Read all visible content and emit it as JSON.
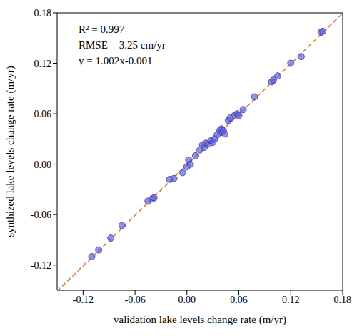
{
  "chart_data": {
    "type": "scatter",
    "xlabel": "validation lake levels change rate (m/yr)",
    "ylabel": "synthized lake levels change rate (m/yr)",
    "annotations": [
      "R² = 0.997",
      "RMSE = 3.25 cm/yr",
      "y = 1.002x-0.001"
    ],
    "xlim": [
      -0.15,
      0.18
    ],
    "ylim": [
      -0.15,
      0.18
    ],
    "xticks": [
      -0.12,
      -0.06,
      {
        "value": 0,
        "label": "0.00"
      },
      0.06,
      0.12,
      0.18
    ],
    "yticks": [
      -0.12,
      -0.06,
      {
        "value": 0,
        "label": "0.00"
      },
      0.06,
      0.12,
      0.18
    ],
    "grid": false,
    "color": "#6262dc",
    "marker": "circle",
    "x": [
      -0.11,
      -0.102,
      -0.088,
      -0.075,
      -0.045,
      -0.04,
      -0.038,
      -0.02,
      -0.015,
      -0.005,
      0,
      0.002,
      0.004,
      0.01,
      0.015,
      0.018,
      0.02,
      0.022,
      0.025,
      0.028,
      0.03,
      0.032,
      0.035,
      0.038,
      0.04,
      0.04,
      0.042,
      0.044,
      0.048,
      0.05,
      0.055,
      0.058,
      0.06,
      0.065,
      0.078,
      0.098,
      0.1,
      0.105,
      0.12,
      0.132,
      0.155,
      0.157
    ],
    "values": [
      -0.11,
      -0.102,
      -0.088,
      -0.073,
      -0.044,
      -0.041,
      -0.04,
      -0.018,
      -0.017,
      -0.01,
      -0.003,
      0.005,
      0,
      0.01,
      0.017,
      0.023,
      0.02,
      0.025,
      0.024,
      0.028,
      0.026,
      0.03,
      0.035,
      0.04,
      0.038,
      0.042,
      0.04,
      0.036,
      0.052,
      0.055,
      0.058,
      0.06,
      0.058,
      0.065,
      0.08,
      0.098,
      0.1,
      0.105,
      0.12,
      0.128,
      0.157,
      0.158
    ],
    "lines": [
      {
        "slope": 1,
        "intercept": 0,
        "color": "#b0b0b0",
        "line_style": "dashed"
      },
      {
        "slope": 1.002,
        "intercept": -0.001,
        "color": "#e8822a",
        "line_style": "dashed"
      }
    ]
  }
}
